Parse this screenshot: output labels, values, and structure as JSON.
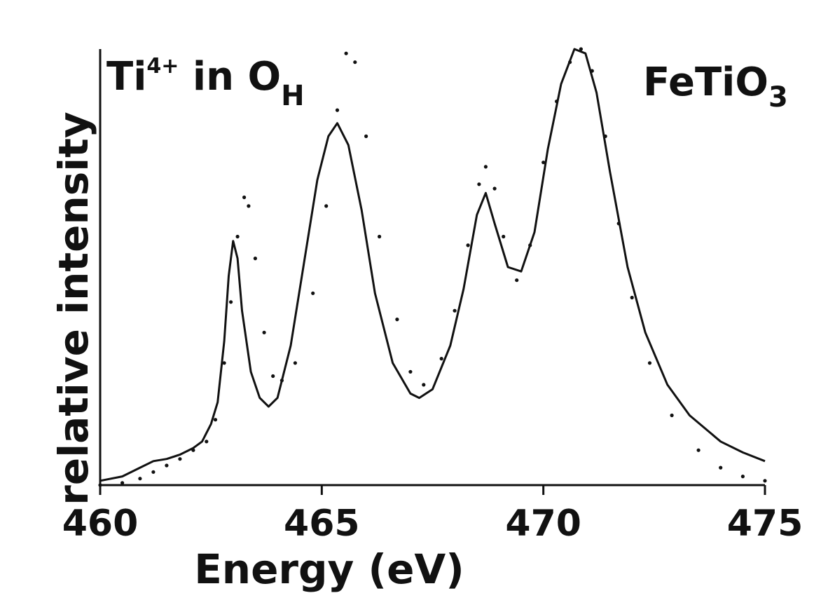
{
  "chart_data": {
    "type": "line",
    "xlabel": "Energy (eV)",
    "ylabel": "relative intensity",
    "xlim": [
      460,
      475
    ],
    "ylim": [
      0,
      1
    ],
    "x_ticks": [
      "460",
      "465",
      "470",
      "475"
    ],
    "y_tick_labels": false,
    "grid": false,
    "annotations": {
      "left": {
        "base": "Ti",
        "sup": "4+",
        "mid": " in O",
        "sub": "H"
      },
      "right": {
        "base": "FeTiO",
        "sub": "3"
      }
    },
    "series": [
      {
        "style": "solid",
        "points": [
          [
            460.0,
            0.01
          ],
          [
            460.5,
            0.02
          ],
          [
            460.9,
            0.04
          ],
          [
            461.2,
            0.055
          ],
          [
            461.5,
            0.06
          ],
          [
            461.8,
            0.07
          ],
          [
            462.1,
            0.085
          ],
          [
            462.3,
            0.1
          ],
          [
            462.5,
            0.14
          ],
          [
            462.65,
            0.19
          ],
          [
            462.8,
            0.33
          ],
          [
            462.9,
            0.48
          ],
          [
            463.0,
            0.56
          ],
          [
            463.1,
            0.52
          ],
          [
            463.2,
            0.4
          ],
          [
            463.4,
            0.26
          ],
          [
            463.6,
            0.2
          ],
          [
            463.8,
            0.18
          ],
          [
            464.0,
            0.2
          ],
          [
            464.3,
            0.32
          ],
          [
            464.6,
            0.51
          ],
          [
            464.9,
            0.7
          ],
          [
            465.15,
            0.8
          ],
          [
            465.35,
            0.83
          ],
          [
            465.6,
            0.78
          ],
          [
            465.9,
            0.63
          ],
          [
            466.2,
            0.44
          ],
          [
            466.6,
            0.28
          ],
          [
            467.0,
            0.21
          ],
          [
            467.2,
            0.2
          ],
          [
            467.5,
            0.22
          ],
          [
            467.9,
            0.32
          ],
          [
            468.2,
            0.45
          ],
          [
            468.5,
            0.62
          ],
          [
            468.7,
            0.67
          ],
          [
            468.9,
            0.6
          ],
          [
            469.2,
            0.5
          ],
          [
            469.5,
            0.49
          ],
          [
            469.8,
            0.58
          ],
          [
            470.1,
            0.77
          ],
          [
            470.4,
            0.92
          ],
          [
            470.7,
            1.0
          ],
          [
            470.95,
            0.99
          ],
          [
            471.2,
            0.9
          ],
          [
            471.5,
            0.72
          ],
          [
            471.9,
            0.5
          ],
          [
            472.3,
            0.35
          ],
          [
            472.8,
            0.23
          ],
          [
            473.3,
            0.16
          ],
          [
            474.0,
            0.1
          ],
          [
            474.5,
            0.075
          ],
          [
            475.0,
            0.055
          ]
        ]
      },
      {
        "style": "dotted",
        "points": [
          [
            460.0,
            0.0
          ],
          [
            460.5,
            0.005
          ],
          [
            460.9,
            0.015
          ],
          [
            461.2,
            0.03
          ],
          [
            461.5,
            0.045
          ],
          [
            461.8,
            0.06
          ],
          [
            462.1,
            0.08
          ],
          [
            462.4,
            0.1
          ],
          [
            462.6,
            0.15
          ],
          [
            462.8,
            0.28
          ],
          [
            462.95,
            0.42
          ],
          [
            463.1,
            0.57
          ],
          [
            463.25,
            0.66
          ],
          [
            463.35,
            0.64
          ],
          [
            463.5,
            0.52
          ],
          [
            463.7,
            0.35
          ],
          [
            463.9,
            0.25
          ],
          [
            464.1,
            0.24
          ],
          [
            464.4,
            0.28
          ],
          [
            464.8,
            0.44
          ],
          [
            465.1,
            0.64
          ],
          [
            465.35,
            0.86
          ],
          [
            465.55,
            0.99
          ],
          [
            465.75,
            0.97
          ],
          [
            466.0,
            0.8
          ],
          [
            466.3,
            0.57
          ],
          [
            466.7,
            0.38
          ],
          [
            467.0,
            0.26
          ],
          [
            467.3,
            0.23
          ],
          [
            467.7,
            0.29
          ],
          [
            468.0,
            0.4
          ],
          [
            468.3,
            0.55
          ],
          [
            468.55,
            0.69
          ],
          [
            468.7,
            0.73
          ],
          [
            468.9,
            0.68
          ],
          [
            469.1,
            0.57
          ],
          [
            469.4,
            0.47
          ],
          [
            469.7,
            0.55
          ],
          [
            470.0,
            0.74
          ],
          [
            470.3,
            0.88
          ],
          [
            470.6,
            0.97
          ],
          [
            470.85,
            1.0
          ],
          [
            471.1,
            0.95
          ],
          [
            471.4,
            0.8
          ],
          [
            471.7,
            0.6
          ],
          [
            472.0,
            0.43
          ],
          [
            472.4,
            0.28
          ],
          [
            472.9,
            0.16
          ],
          [
            473.5,
            0.08
          ],
          [
            474.0,
            0.04
          ],
          [
            474.5,
            0.02
          ],
          [
            475.0,
            0.01
          ]
        ]
      }
    ]
  }
}
